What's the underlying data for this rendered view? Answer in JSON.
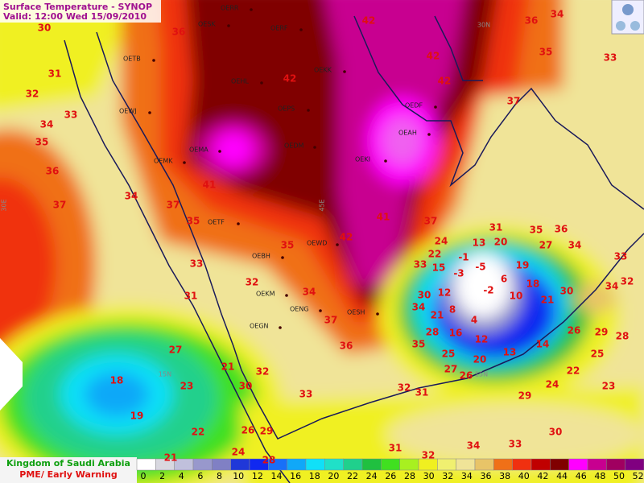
{
  "header": {
    "title": "Surface Temperature  - SYNOP",
    "valid": "Valid: 12:00 Wed 15/09/2010"
  },
  "footer": {
    "country": "Kingdom of Saudi Arabia",
    "agency": "PME/ Early Warning"
  },
  "legend": {
    "ticks": [
      0,
      2,
      4,
      6,
      8,
      10,
      12,
      14,
      16,
      18,
      20,
      22,
      24,
      26,
      28,
      30,
      32,
      34,
      36,
      38,
      40,
      42,
      44,
      46,
      48,
      50,
      52
    ],
    "colors": [
      "#ffffff",
      "#d8d8e0",
      "#c0c0dc",
      "#9898cc",
      "#8080c4",
      "#2038d8",
      "#1028f0",
      "#1870f8",
      "#10a8f8",
      "#10e0f8",
      "#20e0c8",
      "#20d08c",
      "#20c040",
      "#40e020",
      "#a8f020",
      "#f0f020",
      "#f0f070",
      "#f0e498",
      "#e8c468",
      "#f07018",
      "#f03010",
      "#c00000",
      "#800000",
      "#ff00ff",
      "#c80090",
      "#a00060",
      "#800080"
    ]
  },
  "stations": [
    "OERR",
    "OESK",
    "OERF",
    "OETB",
    "OEHL",
    "OEKK",
    "OEWJ",
    "OEPS",
    "OEDF",
    "OEAH",
    "OEMA",
    "OEDM",
    "OEKI",
    "OEMK",
    "OETF",
    "OEWD",
    "OEBH",
    "OEKM",
    "OENG",
    "OEGN",
    "OESH"
  ],
  "grid_labels": [
    "30N",
    "45E",
    "30E",
    "15N",
    "15N"
  ],
  "temperatures": [
    30,
    36,
    42,
    36,
    34,
    33,
    35,
    31,
    32,
    33,
    34,
    35,
    36,
    37,
    34,
    37,
    35,
    35,
    33,
    32,
    31,
    34,
    37,
    36,
    42,
    42,
    42,
    37,
    41,
    42,
    37,
    41,
    31,
    35,
    36,
    34,
    33,
    34,
    32,
    30,
    21,
    27,
    20,
    24,
    22,
    33,
    30,
    34,
    21,
    28,
    35,
    25,
    27,
    26,
    20,
    13,
    14,
    26,
    29,
    28,
    25,
    22,
    24,
    23,
    29,
    30,
    33,
    34,
    31,
    32,
    31,
    32,
    33,
    32,
    30,
    21,
    27,
    23,
    18,
    19,
    22,
    26,
    29,
    24,
    28,
    21,
    -1,
    -5,
    -3,
    -2,
    6,
    19,
    18,
    10,
    4,
    13,
    15,
    12,
    8,
    16,
    12
  ]
}
